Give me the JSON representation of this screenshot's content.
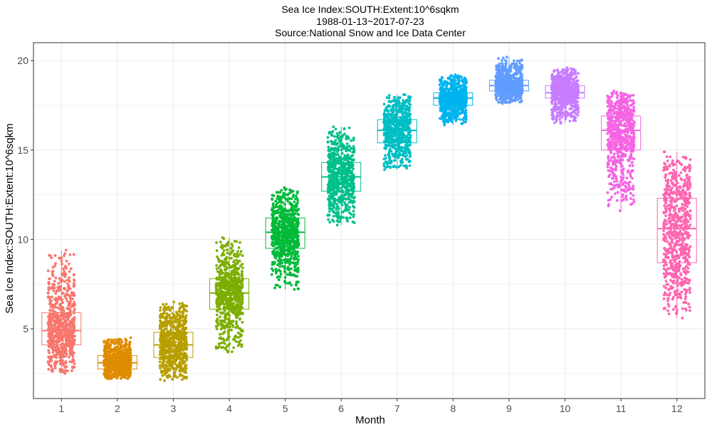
{
  "chart_data": {
    "type": "boxplot-jitter",
    "title_lines": [
      "Sea Ice Index:SOUTH:Extent:10^6sqkm",
      "1988-01-13~2017-07-23",
      "Source:National Snow and Ice Data Center"
    ],
    "xlabel": "Month",
    "ylabel": "Sea Ice Index:SOUTH:Extent:10^6sqkm",
    "categories": [
      "1",
      "2",
      "3",
      "4",
      "5",
      "6",
      "7",
      "8",
      "9",
      "10",
      "11",
      "12"
    ],
    "ylim": [
      1.1,
      21.0
    ],
    "yticks": [
      5,
      10,
      15,
      20
    ],
    "grid": true,
    "background": "#ffffff",
    "grid_color": "#ebebeb",
    "boxes": [
      {
        "month": "1",
        "min": 2.5,
        "q1": 4.1,
        "median": 4.9,
        "q3": 5.9,
        "max": 9.4,
        "color": "#F8766D"
      },
      {
        "month": "2",
        "min": 2.2,
        "q1": 2.75,
        "median": 3.1,
        "q3": 3.5,
        "max": 4.5,
        "color": "#DE8C00"
      },
      {
        "month": "3",
        "min": 2.1,
        "q1": 3.4,
        "median": 4.1,
        "q3": 4.8,
        "max": 6.5,
        "color": "#B79F00"
      },
      {
        "month": "4",
        "min": 3.7,
        "q1": 6.1,
        "median": 7.0,
        "q3": 7.8,
        "max": 10.1,
        "color": "#7CAE00"
      },
      {
        "month": "5",
        "min": 7.2,
        "q1": 9.5,
        "median": 10.4,
        "q3": 11.2,
        "max": 12.9,
        "color": "#00BA38"
      },
      {
        "month": "6",
        "min": 10.8,
        "q1": 12.7,
        "median": 13.5,
        "q3": 14.3,
        "max": 16.3,
        "color": "#00C08B"
      },
      {
        "month": "7",
        "min": 13.9,
        "q1": 15.4,
        "median": 16.1,
        "q3": 16.7,
        "max": 18.1,
        "color": "#00BFC4"
      },
      {
        "month": "8",
        "min": 16.4,
        "q1": 17.5,
        "median": 17.9,
        "q3": 18.2,
        "max": 19.2,
        "color": "#00B4F0"
      },
      {
        "month": "9",
        "min": 17.6,
        "q1": 18.3,
        "median": 18.6,
        "q3": 18.9,
        "max": 20.2,
        "color": "#619CFF"
      },
      {
        "month": "10",
        "min": 16.5,
        "q1": 17.9,
        "median": 18.2,
        "q3": 18.6,
        "max": 19.6,
        "color": "#C77CFF"
      },
      {
        "month": "11",
        "min": 11.6,
        "q1": 15.0,
        "median": 16.1,
        "q3": 16.9,
        "max": 18.3,
        "color": "#F564E3"
      },
      {
        "month": "12",
        "min": 5.6,
        "q1": 8.7,
        "median": 10.6,
        "q3": 12.3,
        "max": 14.9,
        "color": "#FF64B0"
      }
    ]
  }
}
